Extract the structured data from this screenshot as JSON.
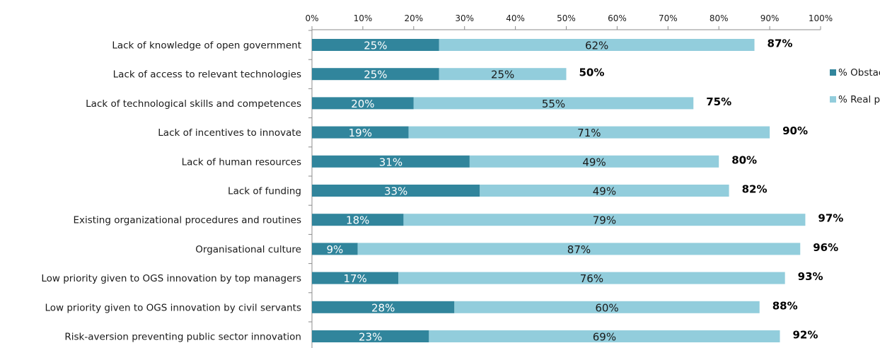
{
  "chart_data": {
    "type": "bar",
    "orientation": "horizontal",
    "stacked": true,
    "categories": [
      "Lack of knowledge of open government",
      "Lack of access to relevant technologies",
      "Lack of technological skills and competences",
      "Lack of incentives to innovate",
      "Lack of human resources",
      "Lack of funding",
      "Existing organizational procedures and routines",
      "Organisational culture",
      "Low priority given to OGS innovation by top managers",
      "Low priority given to OGS innovation by civil servants",
      "Risk-aversion preventing public sector  innovation"
    ],
    "series": [
      {
        "name": "% Obstacle",
        "color": "#31859c",
        "values": [
          25,
          25,
          20,
          19,
          31,
          33,
          18,
          9,
          17,
          28,
          23
        ],
        "labels": [
          "25%",
          "25%",
          "20%",
          "19%",
          "31%",
          "33%",
          "18%",
          "9%",
          "17%",
          "28%",
          "23%"
        ]
      },
      {
        "name": "% Real problem",
        "color": "#92cddc",
        "values": [
          62,
          25,
          55,
          71,
          49,
          49,
          79,
          87,
          76,
          60,
          69
        ],
        "labels": [
          "62%",
          "25%",
          "55%",
          "71%",
          "49%",
          "49%",
          "79%",
          "87%",
          "76%",
          "60%",
          "69%"
        ]
      }
    ],
    "totals": [
      "87%",
      "50%",
      "75%",
      "90%",
      "80%",
      "82%",
      "97%",
      "96%",
      "93%",
      "88%",
      "92%"
    ],
    "xlim": [
      0,
      100
    ],
    "x_ticks": [
      "0%",
      "10%",
      "20%",
      "30%",
      "40%",
      "50%",
      "60%",
      "70%",
      "80%",
      "90%",
      "100%"
    ],
    "x_axis_position": "top",
    "grid": false,
    "legend_position": "right"
  }
}
